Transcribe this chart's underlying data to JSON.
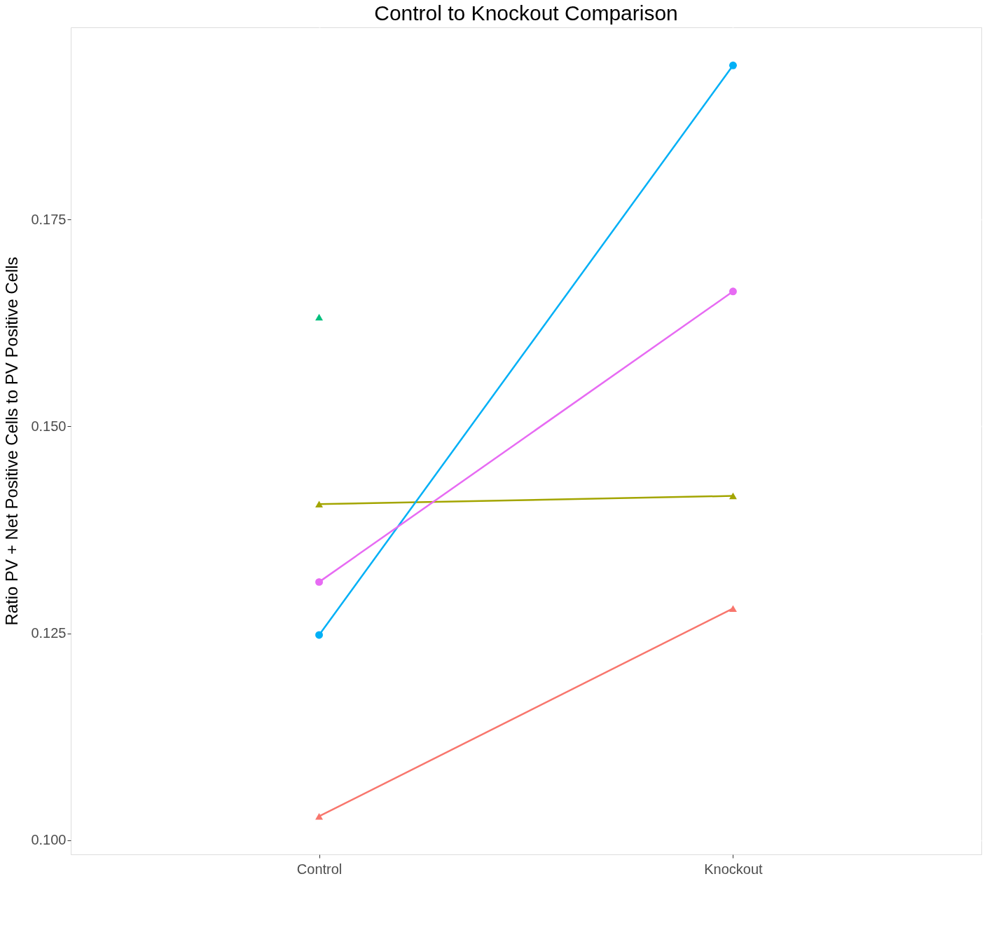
{
  "chart_data": {
    "type": "line",
    "title": "Control to Knockout Comparison",
    "ylabel": "Ratio PV + Net Positive Cells to PV Positive Cells",
    "categories": [
      "Control",
      "Knockout"
    ],
    "series": [
      {
        "color": "#f8766d",
        "marker": "triangle",
        "values": [
          0.1029,
          0.128
        ]
      },
      {
        "color": "#a3a500",
        "marker": "triangle",
        "values": [
          0.1406,
          0.1416
        ]
      },
      {
        "color": "#00bf7d",
        "marker": "triangle",
        "values": [
          0.1632,
          null
        ]
      },
      {
        "color": "#00b0f6",
        "marker": "circle",
        "values": [
          0.1248,
          0.1936
        ]
      },
      {
        "color": "#e76bf3",
        "marker": "circle",
        "values": [
          0.1312,
          0.1663
        ]
      }
    ],
    "ylim": [
      0.0983,
      0.1982
    ],
    "yticks": [
      {
        "value": 0.1,
        "label": "0.100"
      },
      0.125,
      {
        "value": 0.15,
        "label": "0.150"
      },
      0.175
    ],
    "grid": true,
    "line_style": "solid"
  }
}
